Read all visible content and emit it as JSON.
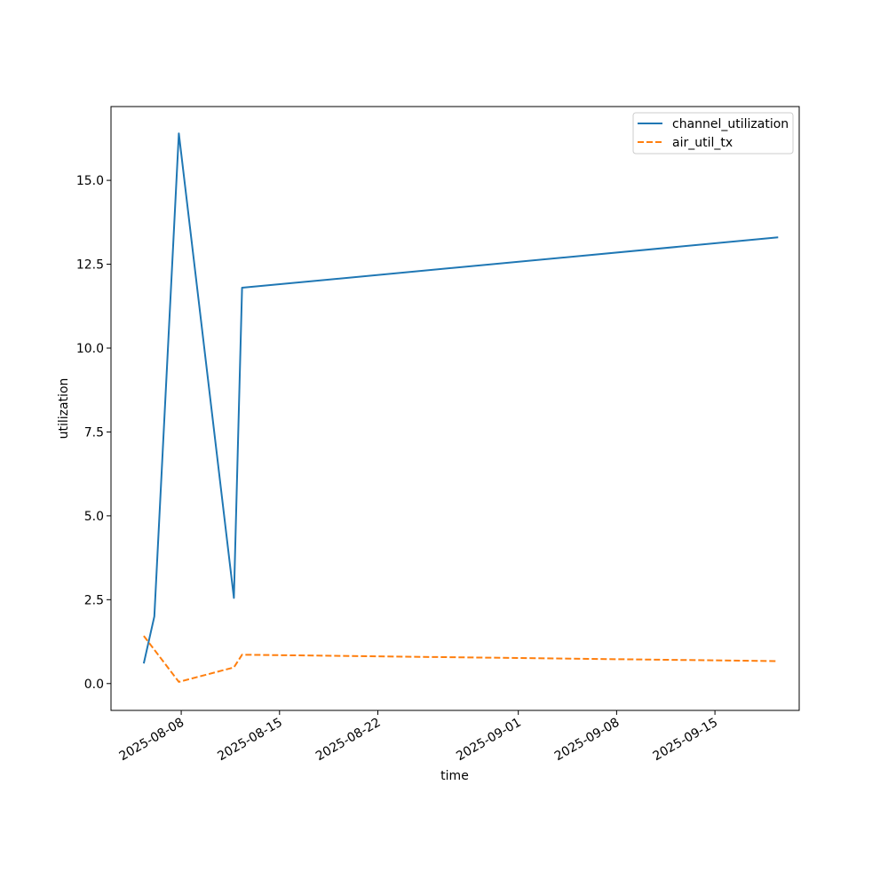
{
  "chart_data": {
    "type": "line",
    "title": "",
    "xlabel": "time",
    "ylabel": "utilization",
    "xlim": [
      "2025-08-03",
      "2025-09-21"
    ],
    "ylim": [
      -0.8,
      17.2
    ],
    "x_ticks": [
      "2025-08-08",
      "2025-08-15",
      "2025-08-22",
      "2025-09-01",
      "2025-09-08",
      "2025-09-15"
    ],
    "y_ticks": [
      "0.0",
      "2.5",
      "5.0",
      "7.5",
      "10.0",
      "12.5",
      "15.0"
    ],
    "grid": false,
    "legend_position": "top-right",
    "series": [
      {
        "name": "channel_utilization",
        "color": "#1f77b4",
        "style": "solid",
        "points": [
          {
            "x": "2025-08-05 08:00",
            "y": 0.6
          },
          {
            "x": "2025-08-06 02:00",
            "y": 2.0
          },
          {
            "x": "2025-08-07 20:00",
            "y": 16.4
          },
          {
            "x": "2025-08-11 18:00",
            "y": 2.55
          },
          {
            "x": "2025-08-12 08:00",
            "y": 11.8
          },
          {
            "x": "2025-09-19 12:00",
            "y": 13.3
          }
        ]
      },
      {
        "name": "air_util_tx",
        "color": "#ff7f0e",
        "style": "dashed",
        "points": [
          {
            "x": "2025-08-05 08:00",
            "y": 1.42
          },
          {
            "x": "2025-08-07 20:00",
            "y": 0.05
          },
          {
            "x": "2025-08-11 18:00",
            "y": 0.48
          },
          {
            "x": "2025-08-12 08:00",
            "y": 0.86
          },
          {
            "x": "2025-09-19 12:00",
            "y": 0.67
          }
        ]
      }
    ]
  }
}
